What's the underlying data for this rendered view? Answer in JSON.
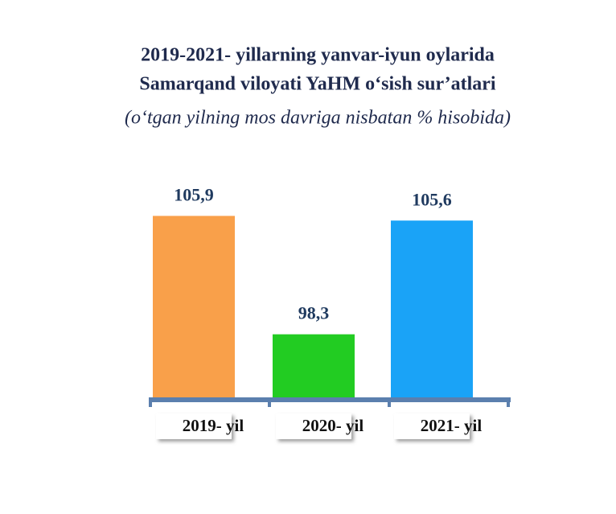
{
  "chart_data": {
    "type": "bar",
    "title": "2019-2021- yillarning yanvar-iyun oylarida",
    "title_line2": "Samarqand viloyati YaHM o‘sish sur’atlari",
    "subtitle": "(o‘tgan yilning mos davriga nisbatan % hisobida)",
    "categories": [
      "2019- yil",
      "2020- yil",
      "2021- yil"
    ],
    "values": [
      105.9,
      98.3,
      105.6
    ],
    "value_labels": [
      "105,9",
      "98,3",
      "105,6"
    ],
    "colors": [
      "#f9a04a",
      "#22cc22",
      "#1aa3f7"
    ],
    "ylim": [
      94.2,
      110
    ]
  }
}
